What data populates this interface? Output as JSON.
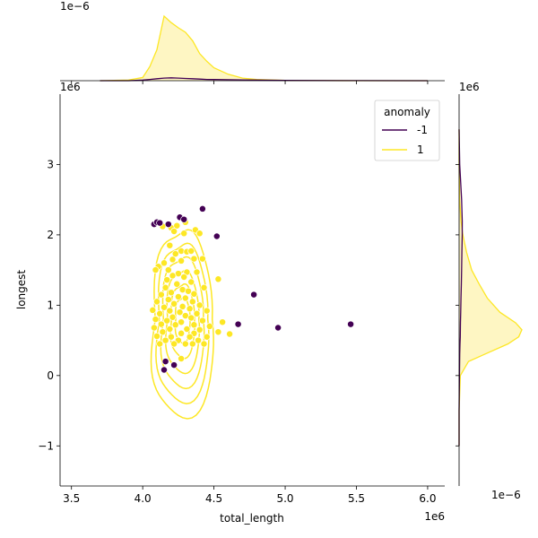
{
  "chart_data": {
    "type": "scatter",
    "kind": "jointplot-kde-scatter",
    "xlabel": "total_length",
    "ylabel": "longest",
    "x_offset_text": "1e6",
    "y_offset_text": "1e6",
    "top_marginal_offset_text": "1e−6",
    "right_marginal_offset_text": "1e−6",
    "right_marginal_y_offset_text": "1e6",
    "xlim": [
      3.42,
      6.12
    ],
    "ylim": [
      -1.57,
      4.0
    ],
    "x_ticks": [
      3.5,
      4.0,
      4.5,
      5.0,
      5.5,
      6.0
    ],
    "x_tick_labels": [
      "3.5",
      "4.0",
      "4.5",
      "5.0",
      "5.5",
      "6.0"
    ],
    "y_ticks": [
      -1,
      0,
      1,
      2,
      3
    ],
    "y_tick_labels": [
      "−1",
      "0",
      "1",
      "2",
      "3"
    ],
    "grid": false,
    "legend": {
      "title": "anomaly",
      "placement": "top-right",
      "entries": [
        {
          "label": "-1",
          "color": "#440154"
        },
        {
          "label": "1",
          "color": "#fde725"
        }
      ]
    },
    "colors": {
      "anomaly_neg": "#440154",
      "anomaly_pos": "#fde725",
      "fill_pos": "#fef6c3"
    },
    "series": [
      {
        "name": "-1",
        "color": "#440154",
        "points": [
          [
            4.08,
            2.15
          ],
          [
            4.1,
            2.18
          ],
          [
            4.12,
            2.17
          ],
          [
            4.18,
            2.15
          ],
          [
            4.26,
            2.25
          ],
          [
            4.29,
            2.22
          ],
          [
            4.42,
            2.37
          ],
          [
            4.52,
            1.98
          ],
          [
            4.67,
            0.73
          ],
          [
            4.78,
            1.15
          ],
          [
            4.95,
            0.68
          ],
          [
            5.46,
            0.73
          ],
          [
            4.16,
            0.2
          ],
          [
            4.15,
            0.08
          ],
          [
            4.22,
            0.15
          ]
        ]
      },
      {
        "name": "1",
        "color": "#fde725",
        "points": [
          [
            4.14,
            2.12
          ],
          [
            4.2,
            2.1
          ],
          [
            4.24,
            2.13
          ],
          [
            4.3,
            2.18
          ],
          [
            4.22,
            2.05
          ],
          [
            4.37,
            2.07
          ],
          [
            4.29,
            2.02
          ],
          [
            4.4,
            2.02
          ],
          [
            4.19,
            1.85
          ],
          [
            4.27,
            1.77
          ],
          [
            4.31,
            1.76
          ],
          [
            4.34,
            1.77
          ],
          [
            4.23,
            1.73
          ],
          [
            4.36,
            1.66
          ],
          [
            4.42,
            1.66
          ],
          [
            4.27,
            1.63
          ],
          [
            4.21,
            1.65
          ],
          [
            4.15,
            1.6
          ],
          [
            4.11,
            1.55
          ],
          [
            4.18,
            1.5
          ],
          [
            4.09,
            1.5
          ],
          [
            4.25,
            1.45
          ],
          [
            4.31,
            1.47
          ],
          [
            4.38,
            1.47
          ],
          [
            4.21,
            1.42
          ],
          [
            4.29,
            1.4
          ],
          [
            4.53,
            1.37
          ],
          [
            4.17,
            1.36
          ],
          [
            4.34,
            1.33
          ],
          [
            4.24,
            1.3
          ],
          [
            4.43,
            1.25
          ],
          [
            4.16,
            1.25
          ],
          [
            4.28,
            1.22
          ],
          [
            4.32,
            1.2
          ],
          [
            4.2,
            1.18
          ],
          [
            4.36,
            1.16
          ],
          [
            4.13,
            1.15
          ],
          [
            4.25,
            1.12
          ],
          [
            4.3,
            1.1
          ],
          [
            4.18,
            1.08
          ],
          [
            4.35,
            1.05
          ],
          [
            4.1,
            1.05
          ],
          [
            4.22,
            1.02
          ],
          [
            4.4,
            1.0
          ],
          [
            4.28,
            0.98
          ],
          [
            4.15,
            0.97
          ],
          [
            4.33,
            0.95
          ],
          [
            4.07,
            0.93
          ],
          [
            4.19,
            0.92
          ],
          [
            4.45,
            0.92
          ],
          [
            4.26,
            0.9
          ],
          [
            4.12,
            0.88
          ],
          [
            4.38,
            0.88
          ],
          [
            4.3,
            0.85
          ],
          [
            4.21,
            0.83
          ],
          [
            4.09,
            0.8
          ],
          [
            4.34,
            0.82
          ],
          [
            4.17,
            0.78
          ],
          [
            4.27,
            0.76
          ],
          [
            4.42,
            0.78
          ],
          [
            4.56,
            0.76
          ],
          [
            4.13,
            0.73
          ],
          [
            4.23,
            0.72
          ],
          [
            4.36,
            0.72
          ],
          [
            4.47,
            0.7
          ],
          [
            4.08,
            0.68
          ],
          [
            4.19,
            0.66
          ],
          [
            4.31,
            0.66
          ],
          [
            4.4,
            0.65
          ],
          [
            4.14,
            0.62
          ],
          [
            4.27,
            0.6
          ],
          [
            4.36,
            0.6
          ],
          [
            4.53,
            0.62
          ],
          [
            4.61,
            0.59
          ],
          [
            4.1,
            0.56
          ],
          [
            4.2,
            0.55
          ],
          [
            4.33,
            0.55
          ],
          [
            4.45,
            0.55
          ],
          [
            4.16,
            0.5
          ],
          [
            4.25,
            0.5
          ],
          [
            4.39,
            0.5
          ],
          [
            4.12,
            0.45
          ],
          [
            4.3,
            0.45
          ],
          [
            4.22,
            0.45
          ],
          [
            4.35,
            0.45
          ],
          [
            4.43,
            0.45
          ],
          [
            4.27,
            0.24
          ]
        ]
      }
    ],
    "top_marginal": {
      "x": [
        3.7,
        3.9,
        4.0,
        4.05,
        4.1,
        4.15,
        4.2,
        4.25,
        4.3,
        4.35,
        4.4,
        4.45,
        4.5,
        4.6,
        4.7,
        4.8,
        5.0,
        5.5,
        6.0
      ],
      "density_pos": [
        0.0,
        0.01,
        0.05,
        0.22,
        0.48,
        1.0,
        0.9,
        0.82,
        0.75,
        0.62,
        0.42,
        0.3,
        0.2,
        0.1,
        0.04,
        0.02,
        0.005,
        0.0,
        0.0
      ],
      "density_neg": [
        0.0,
        0.0,
        0.01,
        0.02,
        0.03,
        0.04,
        0.045,
        0.04,
        0.035,
        0.03,
        0.025,
        0.02,
        0.018,
        0.015,
        0.012,
        0.01,
        0.006,
        0.002,
        0.0
      ]
    },
    "right_marginal": {
      "y": [
        -1.0,
        -0.5,
        0.0,
        0.2,
        0.3,
        0.45,
        0.55,
        0.65,
        0.75,
        0.9,
        1.1,
        1.3,
        1.5,
        1.75,
        2.0,
        2.2,
        2.5,
        3.0,
        3.5
      ],
      "density_pos": [
        0.0,
        0.0,
        0.02,
        0.15,
        0.4,
        0.78,
        0.95,
        1.0,
        0.9,
        0.65,
        0.45,
        0.32,
        0.2,
        0.12,
        0.06,
        0.03,
        0.01,
        0.0,
        0.0
      ],
      "density_neg": [
        0.0,
        0.0,
        0.005,
        0.008,
        0.01,
        0.015,
        0.018,
        0.02,
        0.022,
        0.025,
        0.03,
        0.035,
        0.04,
        0.045,
        0.05,
        0.05,
        0.04,
        0.01,
        0.0
      ]
    }
  }
}
